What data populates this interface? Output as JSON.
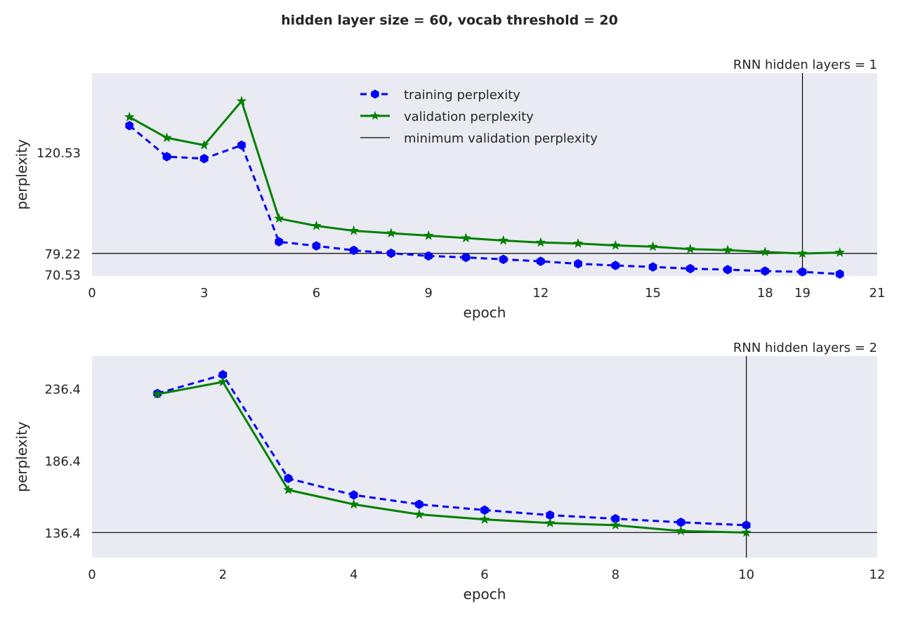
{
  "figure": {
    "suptitle": "hidden layer size = 60, vocab threshold = 20",
    "colors": {
      "background": "#eaeaf2",
      "training": "#0000ff",
      "validation": "#008000",
      "reference": "#000000"
    }
  },
  "legend": {
    "placement": "upper-center",
    "entries": [
      "training perplexity",
      "validation perplexity",
      "minimum validation perplexity"
    ]
  },
  "chart_data": [
    {
      "type": "line",
      "title": "RNN hidden layers = 1",
      "xlabel": "epoch",
      "ylabel": "perplexity",
      "xlim": [
        0,
        21
      ],
      "ylim": [
        70,
        153
      ],
      "xticks": [
        "0",
        "3",
        "6",
        "9",
        "12",
        "15",
        "18",
        "19",
        "21"
      ],
      "xtick_values": [
        0,
        3,
        6,
        9,
        12,
        15,
        18,
        19,
        21
      ],
      "yticks": [
        "70.53",
        "79.22",
        "120.53"
      ],
      "ytick_values": [
        70.53,
        79.22,
        120.53
      ],
      "grid": false,
      "x": [
        1,
        2,
        3,
        4,
        5,
        6,
        7,
        8,
        9,
        10,
        11,
        12,
        13,
        14,
        15,
        16,
        17,
        18,
        19,
        20
      ],
      "series": [
        {
          "name": "training perplexity",
          "style": "dashed-hexagon",
          "values": [
            131.5,
            118.8,
            118.0,
            123.5,
            84.0,
            82.3,
            80.5,
            79.3,
            78.2,
            77.6,
            76.8,
            76.0,
            75.0,
            74.3,
            73.7,
            73.0,
            72.6,
            72.0,
            71.7,
            70.8
          ]
        },
        {
          "name": "validation perplexity",
          "style": "solid-star",
          "values": [
            135.0,
            126.5,
            123.5,
            141.5,
            93.5,
            90.5,
            88.5,
            87.5,
            86.5,
            85.5,
            84.5,
            83.7,
            83.3,
            82.5,
            82.0,
            81.0,
            80.6,
            79.8,
            79.2,
            79.6
          ]
        }
      ],
      "hline": 79.22,
      "vline": 19
    },
    {
      "type": "line",
      "title": "RNN hidden layers = 2",
      "xlabel": "epoch",
      "ylabel": "perplexity",
      "xlim": [
        0,
        12
      ],
      "ylim": [
        119,
        259
      ],
      "xticks": [
        "0",
        "2",
        "4",
        "6",
        "8",
        "10",
        "12"
      ],
      "xtick_values": [
        0,
        2,
        4,
        6,
        8,
        10,
        12
      ],
      "yticks": [
        "136.4",
        "186.4",
        "236.4"
      ],
      "ytick_values": [
        136.4,
        186.4,
        236.4
      ],
      "grid": false,
      "x": [
        1,
        2,
        3,
        4,
        5,
        6,
        7,
        8,
        9,
        10
      ],
      "series": [
        {
          "name": "training perplexity",
          "style": "dashed-hexagon",
          "values": [
            233.0,
            246.0,
            174.0,
            162.5,
            156.0,
            152.0,
            148.5,
            146.0,
            143.5,
            141.5
          ]
        },
        {
          "name": "validation perplexity",
          "style": "solid-star",
          "values": [
            232.5,
            241.0,
            166.0,
            156.0,
            149.0,
            145.5,
            143.0,
            141.5,
            137.5,
            136.4
          ]
        }
      ],
      "hline": 136.4,
      "vline": 10
    }
  ]
}
